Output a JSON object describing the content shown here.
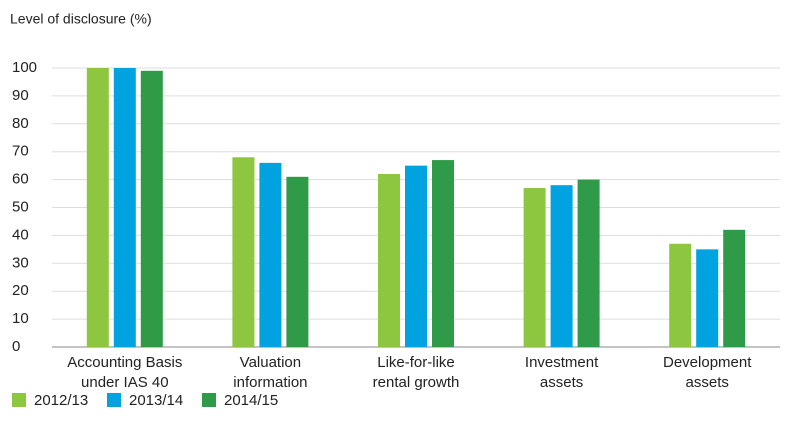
{
  "chart_data": {
    "type": "bar",
    "title": "Level of disclosure (%)",
    "categories": [
      [
        "Accounting Basis",
        "under IAS 40"
      ],
      [
        "Valuation",
        "information"
      ],
      [
        "Like-for-like",
        "rental growth"
      ],
      [
        "Investment",
        "assets"
      ],
      [
        "Development",
        "assets"
      ]
    ],
    "series": [
      {
        "name": "2012/13",
        "color": "#8dc63f",
        "values": [
          100,
          68,
          62,
          57,
          37
        ]
      },
      {
        "name": "2013/14",
        "color": "#00a3e0",
        "values": [
          100,
          66,
          65,
          58,
          35
        ]
      },
      {
        "name": "2014/15",
        "color": "#2f9b48",
        "values": [
          99,
          61,
          67,
          60,
          42
        ]
      }
    ],
    "ylim": [
      0,
      100
    ],
    "yticks": [
      0,
      10,
      20,
      30,
      40,
      50,
      60,
      70,
      80,
      90,
      100
    ],
    "grid": true,
    "legend": "bottom"
  }
}
